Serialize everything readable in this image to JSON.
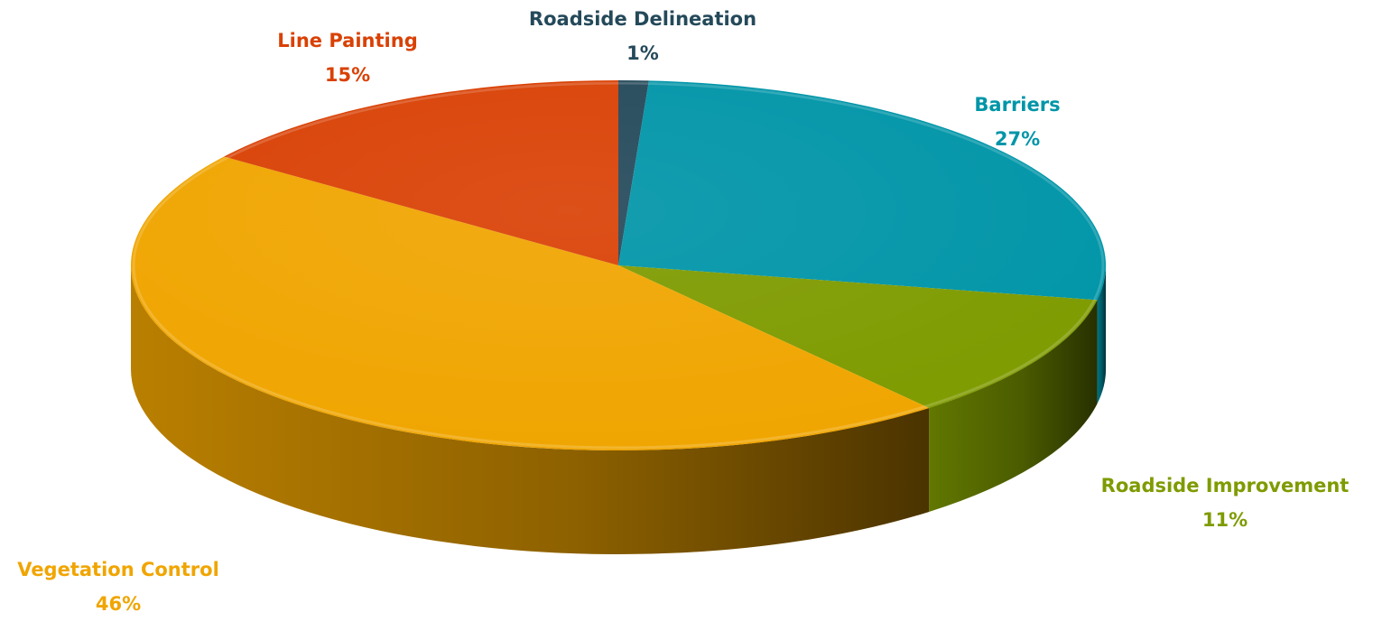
{
  "chart_data": {
    "type": "pie",
    "title": "",
    "style": "3d",
    "slices": [
      {
        "label": "Roadside Delineation",
        "value": 1,
        "display": "1%",
        "color": "#24495a"
      },
      {
        "label": "Barriers",
        "value": 27,
        "display": "27%",
        "color": "#0095a8"
      },
      {
        "label": "Roadside Improvement",
        "value": 11,
        "display": "11%",
        "color": "#7e9b00"
      },
      {
        "label": "Vegetation Control",
        "value": 46,
        "display": "46%",
        "color": "#f0a500"
      },
      {
        "label": "Line Painting",
        "value": 15,
        "display": "15%",
        "color": "#d94105"
      }
    ]
  }
}
